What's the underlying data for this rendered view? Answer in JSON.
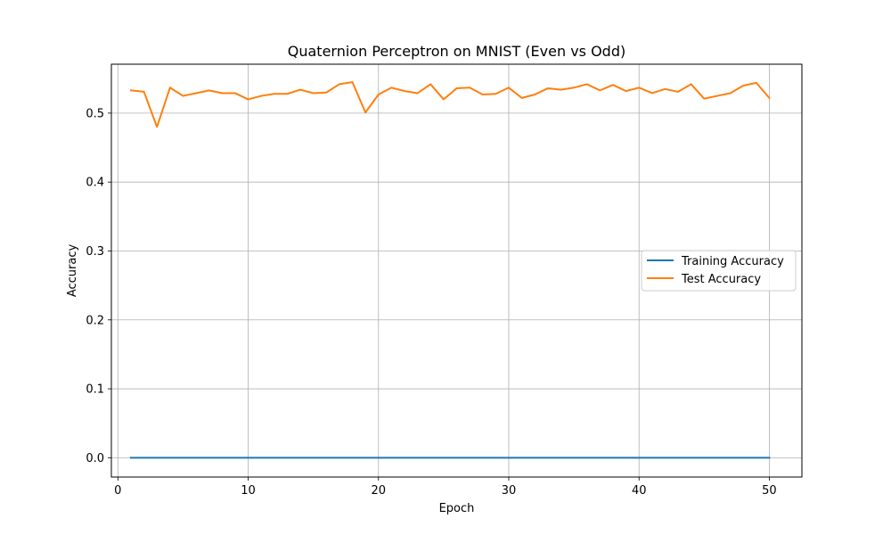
{
  "chart_data": {
    "type": "line",
    "title": "Quaternion Perceptron on MNIST (Even vs Odd)",
    "xlabel": "Epoch",
    "ylabel": "Accuracy",
    "xlim": [
      -0.5,
      52.5
    ],
    "ylim": [
      -0.028,
      0.571
    ],
    "xticks": [
      0,
      10,
      20,
      30,
      40,
      50
    ],
    "yticks": [
      0.0,
      0.1,
      0.2,
      0.3,
      0.4,
      0.5
    ],
    "ytick_labels": [
      "0.0",
      "0.1",
      "0.2",
      "0.3",
      "0.4",
      "0.5"
    ],
    "grid": true,
    "legend_position": "center-right",
    "x": [
      1,
      2,
      3,
      4,
      5,
      6,
      7,
      8,
      9,
      10,
      11,
      12,
      13,
      14,
      15,
      16,
      17,
      18,
      19,
      20,
      21,
      22,
      23,
      24,
      25,
      26,
      27,
      28,
      29,
      30,
      31,
      32,
      33,
      34,
      35,
      36,
      37,
      38,
      39,
      40,
      41,
      42,
      43,
      44,
      45,
      46,
      47,
      48,
      49,
      50
    ],
    "series": [
      {
        "name": "Training Accuracy",
        "color": "#1f77b4",
        "values": [
          0,
          0,
          0,
          0,
          0,
          0,
          0,
          0,
          0,
          0,
          0,
          0,
          0,
          0,
          0,
          0,
          0,
          0,
          0,
          0,
          0,
          0,
          0,
          0,
          0,
          0,
          0,
          0,
          0,
          0,
          0,
          0,
          0,
          0,
          0,
          0,
          0,
          0,
          0,
          0,
          0,
          0,
          0,
          0,
          0,
          0,
          0,
          0,
          0,
          0
        ]
      },
      {
        "name": "Test Accuracy",
        "color": "#ff7f0e",
        "values": [
          0.533,
          0.531,
          0.48,
          0.537,
          0.525,
          0.529,
          0.533,
          0.529,
          0.529,
          0.52,
          0.525,
          0.528,
          0.528,
          0.534,
          0.529,
          0.53,
          0.542,
          0.545,
          0.501,
          0.527,
          0.537,
          0.532,
          0.529,
          0.542,
          0.52,
          0.536,
          0.537,
          0.527,
          0.528,
          0.537,
          0.522,
          0.527,
          0.536,
          0.534,
          0.537,
          0.542,
          0.533,
          0.541,
          0.532,
          0.537,
          0.529,
          0.535,
          0.531,
          0.542,
          0.521,
          0.525,
          0.529,
          0.54,
          0.544,
          0.522
        ]
      }
    ]
  }
}
